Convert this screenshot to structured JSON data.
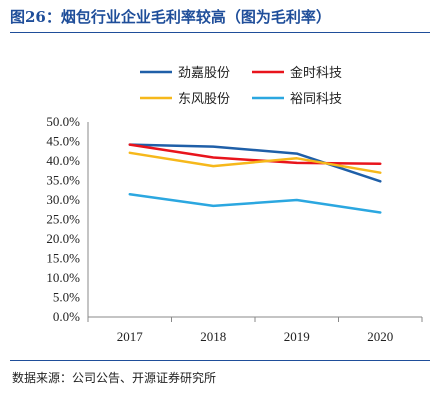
{
  "header": {
    "title": "图26：烟包行业企业毛利率较高（图为毛利率）"
  },
  "footer": {
    "source": "数据来源：公司公告、开源证券研究所"
  },
  "chart_data": {
    "type": "line",
    "title": "图26：烟包行业企业毛利率较高（图为毛利率）",
    "xlabel": "",
    "ylabel": "",
    "categories": [
      "2017",
      "2018",
      "2019",
      "2020"
    ],
    "ylim": [
      0,
      50
    ],
    "y_ticks": [
      "0.0%",
      "5.0%",
      "10.0%",
      "15.0%",
      "20.0%",
      "25.0%",
      "30.0%",
      "35.0%",
      "40.0%",
      "45.0%",
      "50.0%"
    ],
    "grid": false,
    "legend_position": "top",
    "series": [
      {
        "name": "劲嘉股份",
        "color": "#1f5fa8",
        "values": [
          44.2,
          43.7,
          41.9,
          34.8
        ]
      },
      {
        "name": "金时科技",
        "color": "#e8141c",
        "values": [
          44.2,
          40.9,
          39.5,
          39.3
        ]
      },
      {
        "name": "东风股份",
        "color": "#f6b81b",
        "values": [
          42.1,
          38.7,
          40.7,
          37.0
        ]
      },
      {
        "name": "裕同科技",
        "color": "#2ba7e0",
        "values": [
          31.5,
          28.5,
          30.0,
          26.8
        ]
      }
    ]
  }
}
